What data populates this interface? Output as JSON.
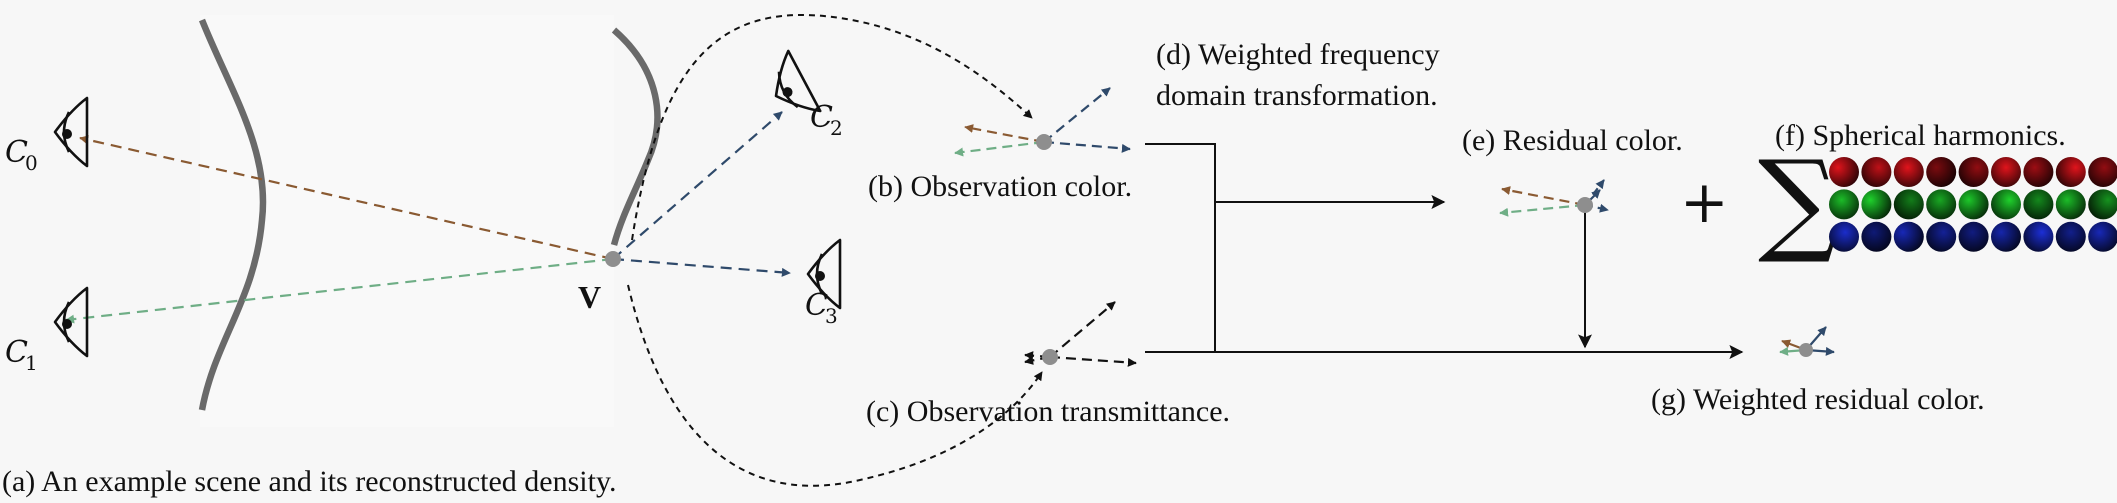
{
  "captions": {
    "a": "(a) An example scene and its reconstructed density.",
    "b": "(b) Observation color.",
    "c": "(c) Observation transmittance.",
    "d_line1": "(d) Weighted frequency",
    "d_line2": "domain transformation.",
    "e": "(e) Residual color.",
    "f": "(f) Spherical harmonics.",
    "g": "(g) Weighted residual color."
  },
  "point_label": "V",
  "cameras": [
    {
      "symbol": "C",
      "sub": "0"
    },
    {
      "symbol": "C",
      "sub": "1"
    },
    {
      "symbol": "C",
      "sub": "2"
    },
    {
      "symbol": "C",
      "sub": "3"
    }
  ],
  "operators": {
    "plus": "+",
    "sum": "∑"
  },
  "colors": {
    "ray_c0": "#8a5a32",
    "ray_c1": "#6fae86",
    "ray_c2": "#2f4a6b",
    "ray_c3": "#2f4a6b",
    "point": "#8e8e8e",
    "density_curve": "#6a6a6a",
    "sh_red": "#e0141c",
    "sh_green": "#1fd12c",
    "sh_blue": "#1c2fd6"
  },
  "sh_grid": {
    "channels": [
      "red",
      "green",
      "blue"
    ],
    "brightness": [
      [
        1.0,
        0.75,
        1.0,
        0.45,
        0.55,
        0.9,
        0.6,
        0.95,
        0.55
      ],
      [
        0.8,
        0.95,
        0.5,
        0.7,
        0.85,
        1.0,
        0.55,
        0.8,
        0.6
      ],
      [
        0.85,
        0.45,
        0.75,
        0.6,
        0.5,
        0.7,
        0.9,
        0.55,
        0.75
      ]
    ]
  }
}
